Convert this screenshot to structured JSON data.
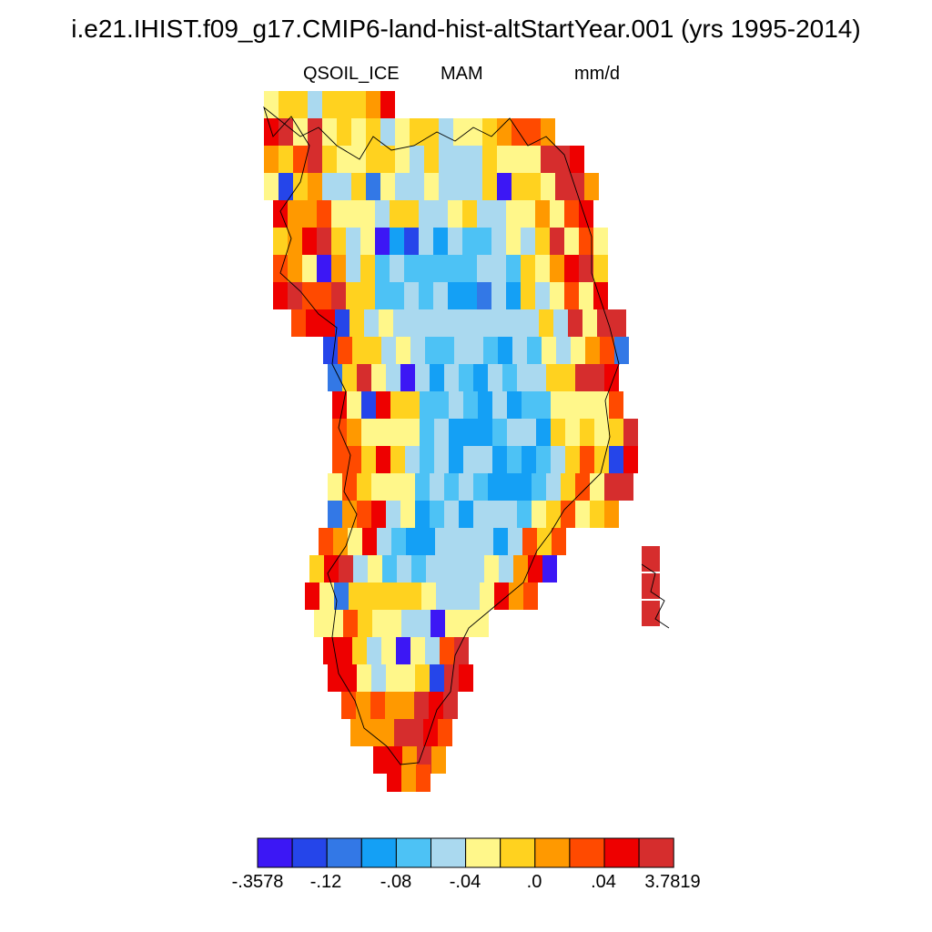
{
  "title": "i.e21.IHIST.f09_g17.CMIP6-land-hist-altStartYear.001 (yrs 1995-2014)",
  "subtitle": {
    "variable": "QSOIL_ICE",
    "season": "MAM",
    "units": "mm/d"
  },
  "colorbar": {
    "colors": [
      "#3c17f5",
      "#2545ea",
      "#3378e6",
      "#14a0f5",
      "#4dc2f5",
      "#aad9ef",
      "#fff78a",
      "#ffd21f",
      "#ff9900",
      "#ff4a00",
      "#ee0000",
      "#d62d2d"
    ],
    "labels": [
      "-.3578",
      "-.12",
      "-.08",
      "-.04",
      ".0",
      ".04",
      "3.7819"
    ]
  },
  "map": {
    "region": "Greenland",
    "coastline_color": "#000000"
  }
}
